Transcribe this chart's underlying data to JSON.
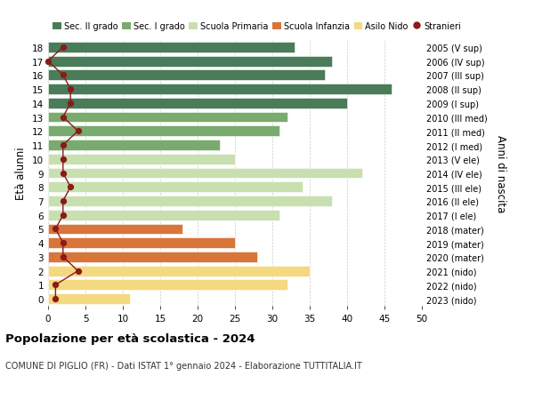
{
  "ages": [
    18,
    17,
    16,
    15,
    14,
    13,
    12,
    11,
    10,
    9,
    8,
    7,
    6,
    5,
    4,
    3,
    2,
    1,
    0
  ],
  "right_labels": [
    "2005 (V sup)",
    "2006 (IV sup)",
    "2007 (III sup)",
    "2008 (II sup)",
    "2009 (I sup)",
    "2010 (III med)",
    "2011 (II med)",
    "2012 (I med)",
    "2013 (V ele)",
    "2014 (IV ele)",
    "2015 (III ele)",
    "2016 (II ele)",
    "2017 (I ele)",
    "2018 (mater)",
    "2019 (mater)",
    "2020 (mater)",
    "2021 (nido)",
    "2022 (nido)",
    "2023 (nido)"
  ],
  "bar_values": [
    33,
    38,
    37,
    46,
    40,
    32,
    31,
    23,
    25,
    42,
    34,
    38,
    31,
    18,
    25,
    28,
    35,
    32,
    11
  ],
  "bar_colors": [
    "#4a7c59",
    "#4a7c59",
    "#4a7c59",
    "#4a7c59",
    "#4a7c59",
    "#7aab6e",
    "#7aab6e",
    "#7aab6e",
    "#c8e0b0",
    "#c8e0b0",
    "#c8e0b0",
    "#c8e0b0",
    "#c8e0b0",
    "#d8763a",
    "#d8763a",
    "#d8763a",
    "#f5d980",
    "#f5d980",
    "#f5d980"
  ],
  "stranieri_values": [
    2,
    0,
    2,
    3,
    3,
    2,
    4,
    2,
    2,
    2,
    3,
    2,
    2,
    1,
    2,
    2,
    4,
    1,
    1
  ],
  "legend_labels": [
    "Sec. II grado",
    "Sec. I grado",
    "Scuola Primaria",
    "Scuola Infanzia",
    "Asilo Nido",
    "Stranieri"
  ],
  "legend_colors": [
    "#4a7c59",
    "#7aab6e",
    "#c8e0b0",
    "#d8763a",
    "#f5d980",
    "#8b1a1a"
  ],
  "ylabel_left": "Età alunni",
  "ylabel_right": "Anni di nascita",
  "xlim": [
    0,
    50
  ],
  "xticks": [
    0,
    5,
    10,
    15,
    20,
    25,
    30,
    35,
    40,
    45,
    50
  ],
  "title": "Popolazione per età scolastica - 2024",
  "subtitle": "COMUNE DI PIGLIO (FR) - Dati ISTAT 1° gennaio 2024 - Elaborazione TUTTITALIA.IT",
  "bar_height": 0.75,
  "background_color": "#ffffff",
  "grid_color": "#cccccc",
  "stranieri_color": "#8b1a1a"
}
